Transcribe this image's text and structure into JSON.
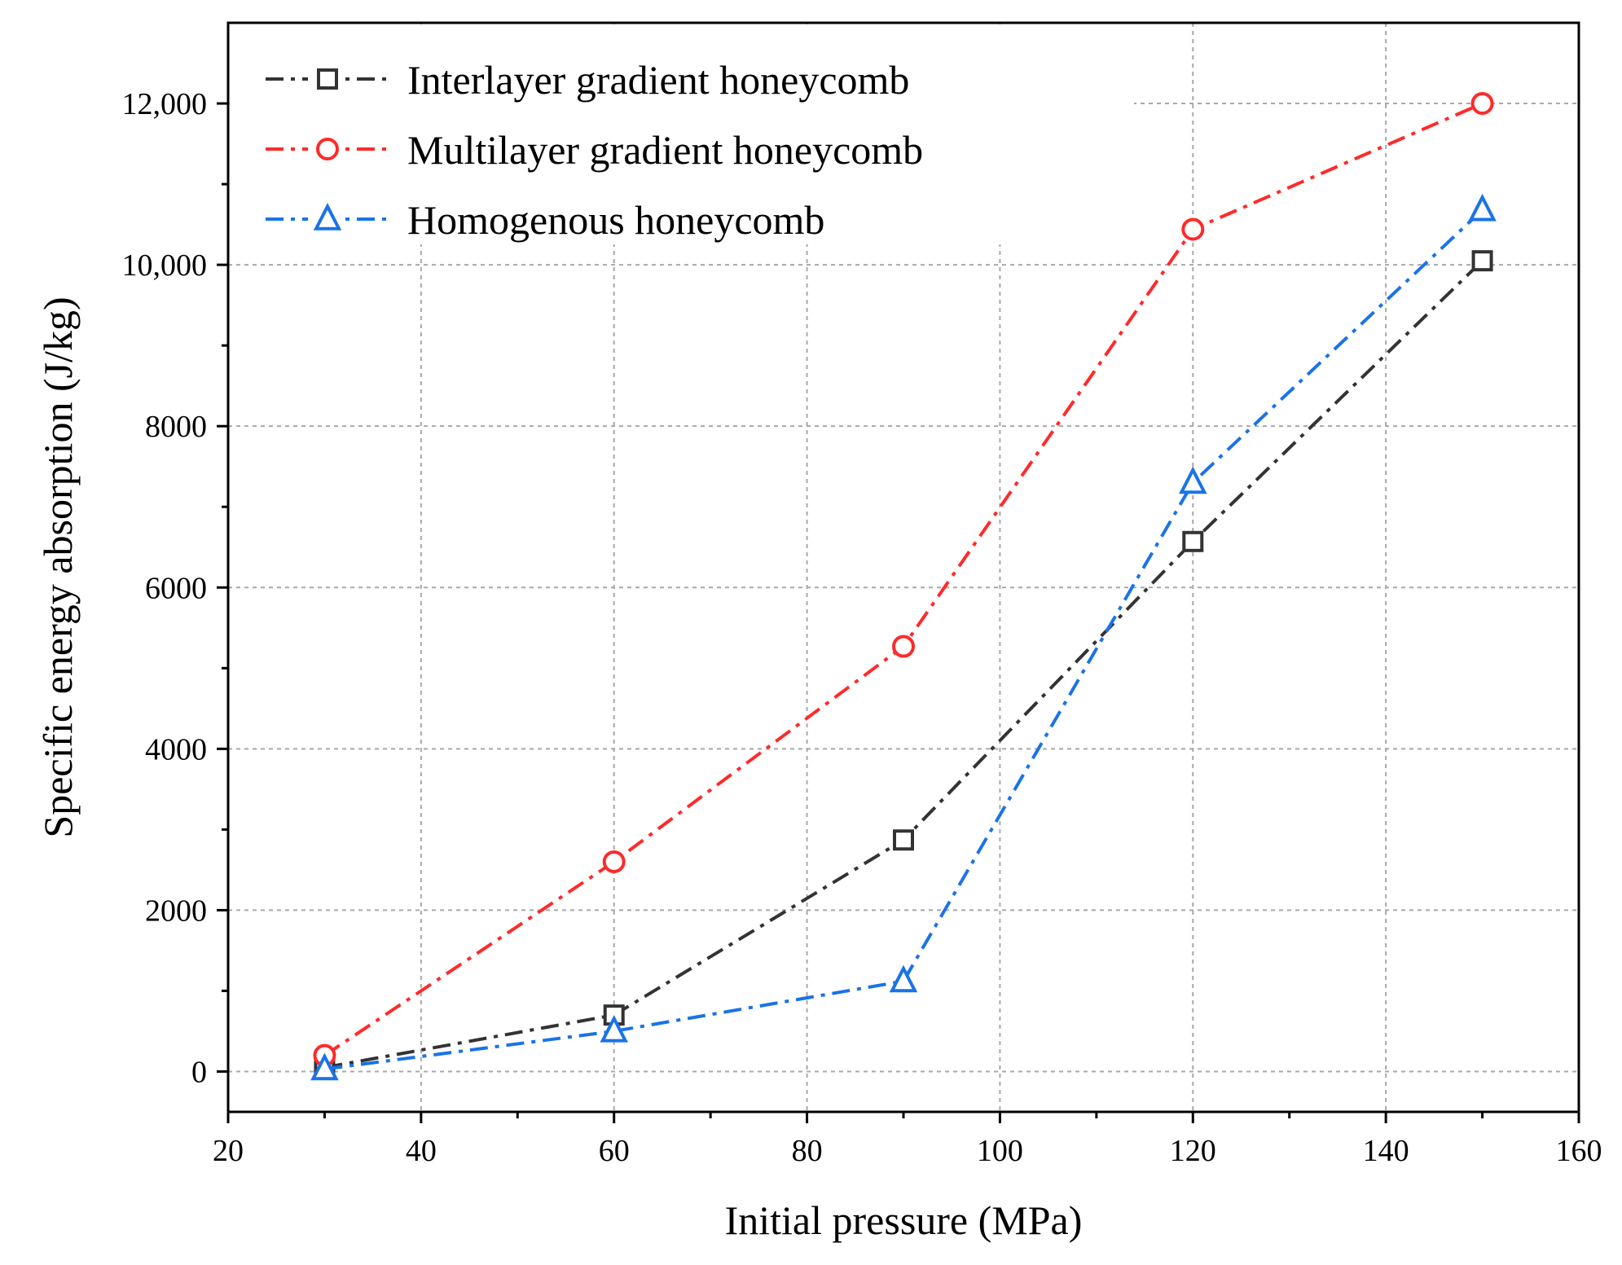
{
  "chart_data": {
    "type": "line",
    "title": "",
    "xlabel": "Initial pressure (MPa)",
    "ylabel": "Specific energy absorption (J/kg)",
    "xlim": [
      20,
      160
    ],
    "ylim": [
      -500,
      13000
    ],
    "x_ticks": [
      20,
      40,
      60,
      80,
      100,
      120,
      140,
      160
    ],
    "x_tick_labels": [
      "20",
      "40",
      "60",
      "80",
      "100",
      "120",
      "140",
      "160"
    ],
    "y_ticks": [
      0,
      2000,
      4000,
      6000,
      8000,
      10000,
      12000
    ],
    "y_tick_labels": [
      "0",
      "2000",
      "4000",
      "6000",
      "8000",
      "10,000",
      "12,000"
    ],
    "grid": true,
    "legend_position": "top-left",
    "x": [
      30,
      60,
      90,
      120,
      150
    ],
    "series": [
      {
        "name": "Interlayer gradient honeycomb",
        "color": "#333333",
        "marker": "square",
        "values": [
          50,
          700,
          2870,
          6570,
          10050
        ]
      },
      {
        "name": "Multilayer gradient honeycomb",
        "color": "#ff2a2a",
        "marker": "circle",
        "values": [
          200,
          2600,
          5270,
          10440,
          12000
        ]
      },
      {
        "name": "Homogenous honeycomb",
        "color": "#1a73e8",
        "marker": "triangle",
        "values": [
          30,
          500,
          1120,
          7300,
          10680
        ]
      }
    ]
  }
}
